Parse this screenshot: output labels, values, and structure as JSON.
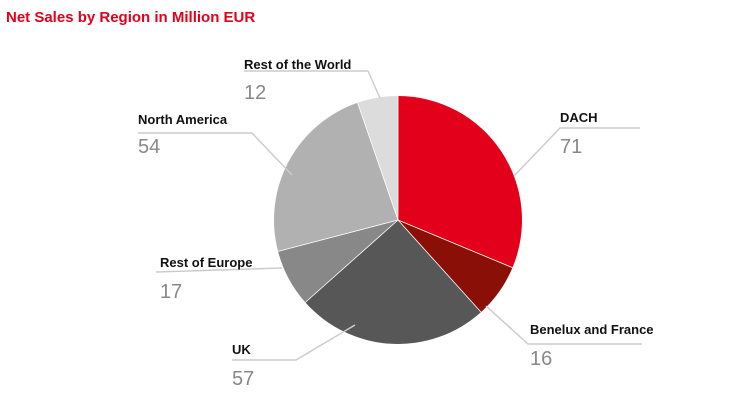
{
  "chart_data": {
    "type": "pie",
    "title": "Net Sales by Region in Million EUR",
    "slices": [
      {
        "label": "DACH",
        "value": 71,
        "color": "#e2001a"
      },
      {
        "label": "Benelux and France",
        "value": 16,
        "color": "#8a0f06"
      },
      {
        "label": "UK",
        "value": 57,
        "color": "#575757"
      },
      {
        "label": "Rest of Europe",
        "value": 17,
        "color": "#888888"
      },
      {
        "label": "North America",
        "value": 54,
        "color": "#b1b1b1"
      },
      {
        "label": "Rest of the World",
        "value": 12,
        "color": "#dcdcdc"
      }
    ],
    "legend": "none"
  }
}
